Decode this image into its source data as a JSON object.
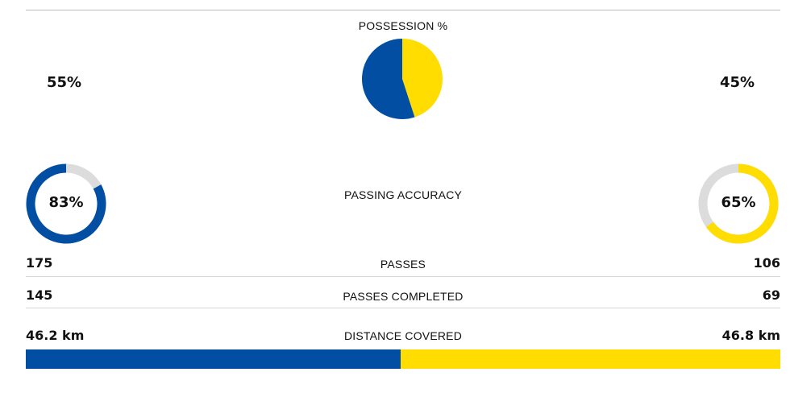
{
  "colors": {
    "home": "#024ea2",
    "away": "#ffdd00",
    "track": "#dcdcdc"
  },
  "chart_data": [
    {
      "type": "pie",
      "title": "POSSESSION %",
      "slices": [
        {
          "value": 55,
          "color": "#024ea2"
        },
        {
          "value": 45,
          "color": "#ffdd00"
        }
      ],
      "labels": {
        "home": "55%",
        "away": "45%"
      }
    },
    {
      "type": "donut",
      "title": "PASSING ACCURACY",
      "home": {
        "value": 83,
        "label": "83%"
      },
      "away": {
        "value": 65,
        "label": "65%"
      }
    },
    {
      "type": "table",
      "rows": [
        {
          "label": "PASSES",
          "home": "175",
          "away": "106"
        },
        {
          "label": "PASSES COMPLETED",
          "home": "145",
          "away": "69"
        }
      ]
    },
    {
      "type": "bar",
      "title": "DISTANCE COVERED",
      "home": {
        "value": 46.2,
        "label": "46.2 km"
      },
      "away": {
        "value": 46.8,
        "label": "46.8 km"
      }
    }
  ]
}
